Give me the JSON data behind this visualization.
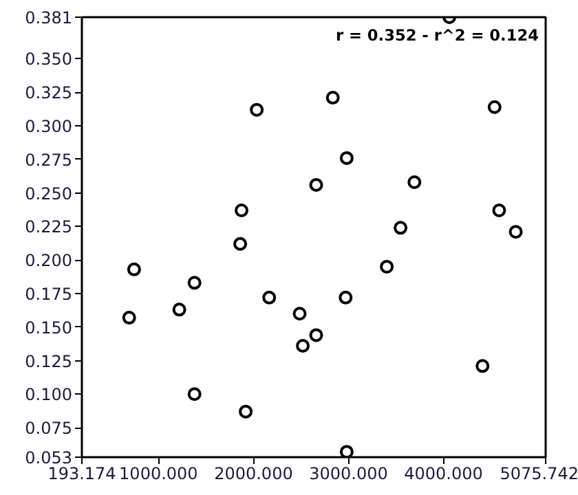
{
  "chart_data": {
    "type": "scatter",
    "marker": "circle",
    "grid": false,
    "annotations": [
      "r = 0.352 - r^2 = 0.124"
    ],
    "xlim": [
      193.174,
      5075.742
    ],
    "xticks": [
      {
        "value": 193.174,
        "label": "193.174"
      },
      {
        "value": 1000,
        "label": "1000.000"
      },
      {
        "value": 2000,
        "label": "2000.000"
      },
      {
        "value": 3000,
        "label": "3000.000"
      },
      {
        "value": 4000,
        "label": "4000.000"
      },
      {
        "value": 5075.742,
        "label": "5075.742"
      }
    ],
    "ylim": [
      0.053,
      0.381
    ],
    "yticks": [
      {
        "value": 0.053,
        "label": "0.053"
      },
      {
        "value": 0.075,
        "label": "0.075"
      },
      {
        "value": 0.1,
        "label": "0.100"
      },
      {
        "value": 0.125,
        "label": "0.125"
      },
      {
        "value": 0.15,
        "label": "0.150"
      },
      {
        "value": 0.175,
        "label": "0.175"
      },
      {
        "value": 0.2,
        "label": "0.200"
      },
      {
        "value": 0.225,
        "label": "0.225"
      },
      {
        "value": 0.25,
        "label": "0.250"
      },
      {
        "value": 0.275,
        "label": "0.275"
      },
      {
        "value": 0.3,
        "label": "0.300"
      },
      {
        "value": 0.325,
        "label": "0.325"
      },
      {
        "value": 0.35,
        "label": "0.350"
      },
      {
        "value": 0.381,
        "label": "0.381"
      }
    ],
    "series": [
      {
        "color": "#000000",
        "x": [
          743,
          691,
          1379,
          1219,
          1379,
          2034,
          1874,
          1860,
          2165,
          2486,
          2660,
          2519,
          1918,
          2660,
          4062,
          2835,
          4538,
          2981,
          3694,
          4586,
          4761,
          3548,
          3403,
          2970,
          4411,
          2981
        ],
        "values": [
          0.193,
          0.157,
          0.183,
          0.163,
          0.1,
          0.312,
          0.237,
          0.212,
          0.172,
          0.16,
          0.144,
          0.136,
          0.087,
          0.256,
          0.381,
          0.321,
          0.314,
          0.276,
          0.258,
          0.237,
          0.221,
          0.224,
          0.195,
          0.172,
          0.121,
          0.057
        ]
      }
    ]
  }
}
